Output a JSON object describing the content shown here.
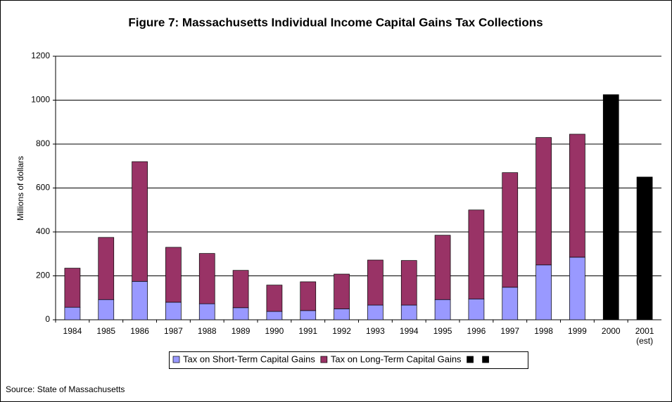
{
  "chart_data": {
    "type": "stacked_bar",
    "title": "Figure 7: Massachusetts Individual Income Capital Gains Tax Collections",
    "y_label": "Millions of dollars",
    "source": "Source: State of Massachusetts",
    "categories": [
      "1984",
      "1985",
      "1986",
      "1987",
      "1988",
      "1989",
      "1990",
      "1991",
      "1992",
      "1993",
      "1994",
      "1995",
      "1996",
      "1997",
      "1998",
      "1999",
      "2000",
      "2001\n(est)"
    ],
    "series": [
      {
        "name": "Tax on Short-Term Capital Gains",
        "color": "#9999ff",
        "values": [
          57,
          92,
          175,
          80,
          73,
          55,
          38,
          42,
          50,
          67,
          67,
          92,
          95,
          148,
          250,
          285,
          null,
          null
        ]
      },
      {
        "name": "Tax on Long-Term Capital Gains",
        "color": "#993366",
        "values": [
          178,
          283,
          545,
          250,
          229,
          170,
          120,
          131,
          158,
          205,
          203,
          293,
          405,
          522,
          580,
          560,
          null,
          null
        ]
      },
      {
        "color": "#000000",
        "values": [
          null,
          null,
          null,
          null,
          null,
          null,
          null,
          null,
          null,
          null,
          null,
          null,
          null,
          null,
          null,
          null,
          1025,
          null
        ]
      },
      {
        "color": "#000000",
        "values": [
          null,
          null,
          null,
          null,
          null,
          null,
          null,
          null,
          null,
          null,
          null,
          null,
          null,
          null,
          null,
          null,
          null,
          650
        ]
      }
    ],
    "ylim": [
      0,
      1200
    ],
    "yticks": [
      0,
      200,
      400,
      600,
      800,
      1000,
      1200
    ],
    "grid": true
  }
}
